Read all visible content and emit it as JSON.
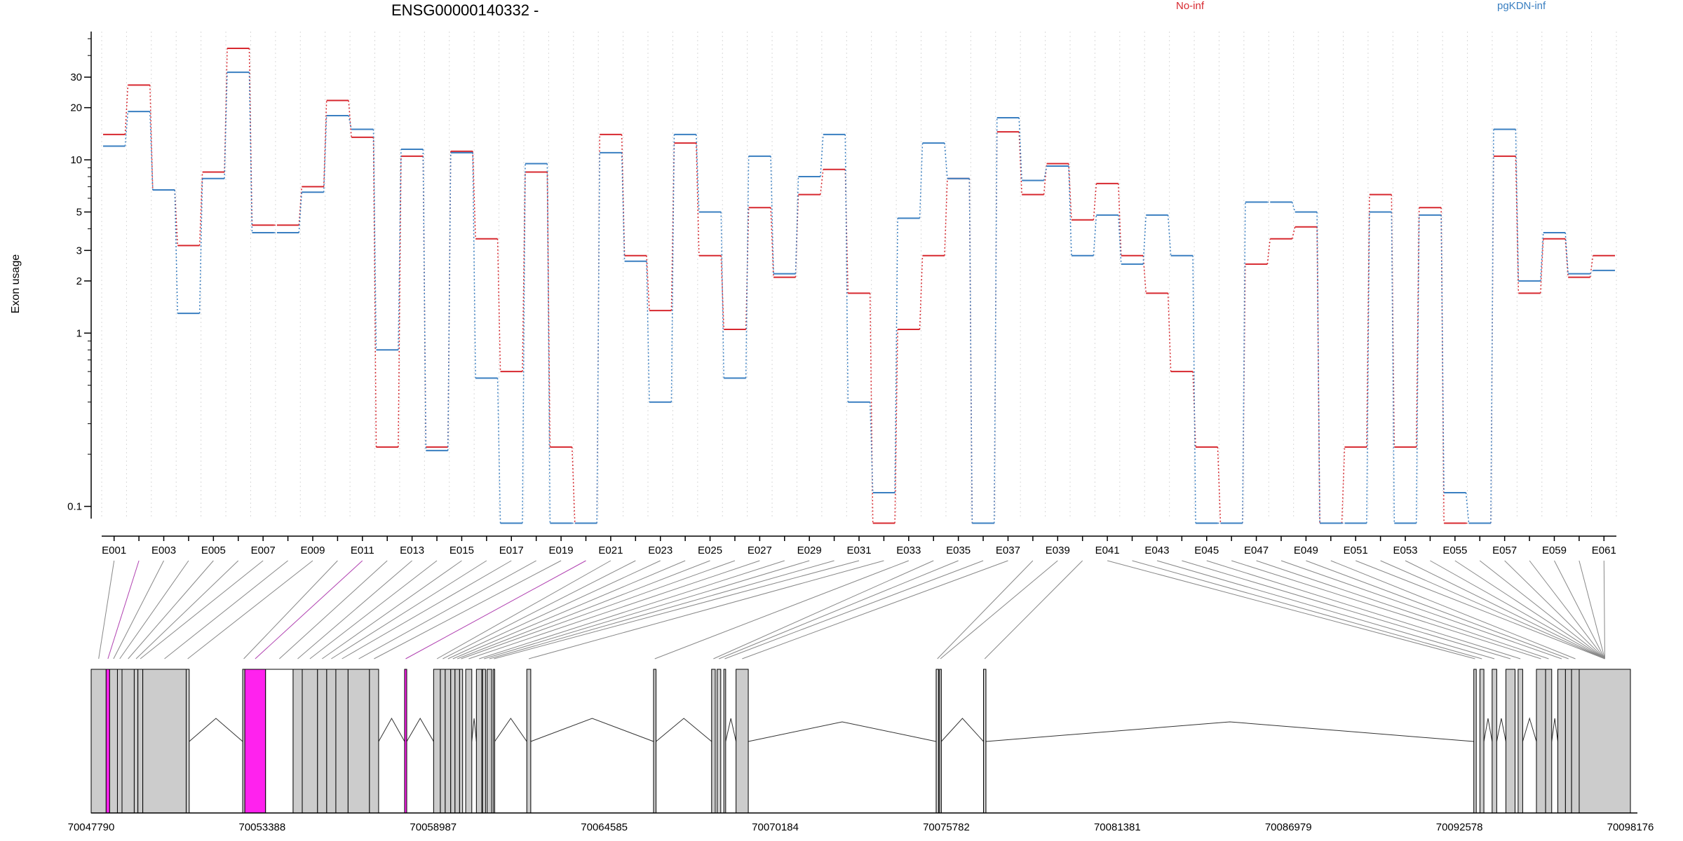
{
  "colors": {
    "series_a": "#d7282f",
    "series_b": "#3a7fc1",
    "exon_fill": "#cccccc",
    "highlight_fill": "#ff22ee",
    "highlight_line": "#b040b0",
    "connector": "#888888",
    "grid": "#d9d9d9"
  },
  "chart_data": {
    "type": "line",
    "title": "ENSG00000140332 -",
    "ylabel": "Exon usage",
    "xlabel": "",
    "y_scale": "log",
    "ylim": [
      0.085,
      55
    ],
    "y_ticks": [
      0.1,
      1,
      2,
      3,
      5,
      10,
      20,
      30
    ],
    "y_tick_labels": [
      "0.1",
      "1",
      "2",
      "3",
      "5",
      "10",
      "20",
      "30"
    ],
    "legend_position": "top",
    "grid": "vertical-dotted",
    "categories": [
      "E001",
      "E002",
      "E003",
      "E004",
      "E005",
      "E006",
      "E007",
      "E008",
      "E009",
      "E010",
      "E011",
      "E012",
      "E013",
      "E014",
      "E015",
      "E016",
      "E017",
      "E018",
      "E019",
      "E020",
      "E021",
      "E022",
      "E023",
      "E024",
      "E025",
      "E026",
      "E027",
      "E028",
      "E029",
      "E030",
      "E031",
      "E032",
      "E033",
      "E034",
      "E035",
      "E036",
      "E037",
      "E038",
      "E039",
      "E040",
      "E041",
      "E042",
      "E043",
      "E044",
      "E045",
      "E046",
      "E047",
      "E048",
      "E049",
      "E050",
      "E051",
      "E052",
      "E053",
      "E054",
      "E055",
      "E056",
      "E057",
      "E058",
      "E059",
      "E060",
      "E061"
    ],
    "x_tick_labels": [
      "E001",
      "E003",
      "E005",
      "E007",
      "E009",
      "E011",
      "E013",
      "E015",
      "E017",
      "E019",
      "E021",
      "E023",
      "E025",
      "E027",
      "E029",
      "E031",
      "E033",
      "E035",
      "E037",
      "E039",
      "E041",
      "E043",
      "E045",
      "E047",
      "E049",
      "E051",
      "E053",
      "E055",
      "E057",
      "E059",
      "E061"
    ],
    "series": [
      {
        "name": "No-inf",
        "color": "#d7282f",
        "values": [
          14,
          27,
          6.7,
          3.2,
          8.5,
          44,
          4.2,
          4.2,
          7,
          22,
          13.5,
          0.22,
          10.5,
          0.22,
          11.2,
          3.5,
          0.6,
          8.5,
          0.22,
          0.08,
          14,
          2.8,
          1.35,
          12.5,
          2.8,
          1.05,
          5.3,
          2.1,
          6.3,
          8.8,
          1.7,
          0.08,
          1.05,
          2.8,
          7.8,
          0.08,
          14.5,
          6.3,
          9.5,
          4.5,
          7.3,
          2.8,
          1.7,
          0.6,
          0.22,
          0.08,
          2.5,
          3.5,
          4.1,
          0.08,
          0.22,
          6.3,
          0.22,
          5.3,
          0.08,
          0.08,
          10.5,
          1.7,
          3.5,
          2.1,
          2.8
        ]
      },
      {
        "name": "pgKDN-inf",
        "color": "#3a7fc1",
        "values": [
          12,
          19,
          6.7,
          1.3,
          7.8,
          32,
          3.8,
          3.8,
          6.5,
          18,
          15,
          0.8,
          11.5,
          0.21,
          11,
          0.55,
          0.08,
          9.5,
          0.08,
          0.08,
          11,
          2.6,
          0.4,
          14,
          5,
          0.55,
          10.5,
          2.2,
          8,
          14,
          0.4,
          0.12,
          4.6,
          12.5,
          7.8,
          0.08,
          17.5,
          7.6,
          9.2,
          2.8,
          4.8,
          2.5,
          4.8,
          2.8,
          0.08,
          0.08,
          5.7,
          5.7,
          5,
          0.08,
          0.08,
          5,
          0.08,
          4.8,
          0.12,
          0.08,
          15,
          2,
          3.8,
          2.2,
          2.3
        ]
      }
    ],
    "gene_model": {
      "coordinate_labels": [
        "70047790",
        "70053388",
        "70058987",
        "70064585",
        "70070184",
        "70075782",
        "70081381",
        "70086979",
        "70092578",
        "70098176"
      ],
      "range": [
        70047790,
        70098176
      ],
      "exon_bins": [
        [
          70047790,
          70048280,
          "exon"
        ],
        [
          70048280,
          70048395,
          "highlight"
        ],
        [
          70048395,
          70048650,
          "exon"
        ],
        [
          70048650,
          70048800,
          "exon"
        ],
        [
          70048800,
          70049200,
          "exon"
        ],
        [
          70049200,
          70049320,
          "exon"
        ],
        [
          70049320,
          70049480,
          "exon"
        ],
        [
          70049480,
          70050900,
          "exon"
        ],
        [
          70050900,
          70051000,
          "exon"
        ],
        [
          70052750,
          70052820,
          "exon"
        ],
        [
          70052820,
          70053500,
          "highlight"
        ],
        [
          70053500,
          70054400,
          "intron_bin"
        ],
        [
          70054400,
          70054700,
          "exon"
        ],
        [
          70054700,
          70055200,
          "exon"
        ],
        [
          70055200,
          70055500,
          "exon"
        ],
        [
          70055500,
          70055800,
          "exon"
        ],
        [
          70055800,
          70056200,
          "exon"
        ],
        [
          70056200,
          70056900,
          "exon"
        ],
        [
          70056900,
          70057200,
          "exon"
        ],
        [
          70058050,
          70058120,
          "highlight"
        ],
        [
          70059000,
          70059220,
          "exon"
        ],
        [
          70059220,
          70059380,
          "exon"
        ],
        [
          70059380,
          70059560,
          "exon"
        ],
        [
          70059560,
          70059700,
          "exon"
        ],
        [
          70059700,
          70059850,
          "exon"
        ],
        [
          70059850,
          70059950,
          "exon"
        ],
        [
          70060050,
          70060250,
          "exon"
        ],
        [
          70060400,
          70060580,
          "exon"
        ],
        [
          70060600,
          70060700,
          "exon"
        ],
        [
          70060750,
          70060900,
          "exon"
        ],
        [
          70060950,
          70061000,
          "exon"
        ],
        [
          70062050,
          70062180,
          "exon"
        ],
        [
          70066200,
          70066280,
          "exon"
        ],
        [
          70068100,
          70068220,
          "exon"
        ],
        [
          70068280,
          70068400,
          "exon"
        ],
        [
          70068500,
          70068560,
          "exon"
        ],
        [
          70068900,
          70069300,
          "exon"
        ],
        [
          70075450,
          70075530,
          "exon"
        ],
        [
          70075560,
          70075620,
          "exon"
        ],
        [
          70077000,
          70077080,
          "exon"
        ],
        [
          70093050,
          70093130,
          "exon"
        ],
        [
          70093250,
          70093380,
          "exon"
        ],
        [
          70093650,
          70093800,
          "exon"
        ],
        [
          70094100,
          70094400,
          "exon"
        ],
        [
          70094500,
          70094650,
          "exon"
        ],
        [
          70095100,
          70095400,
          "exon"
        ],
        [
          70095400,
          70095600,
          "exon"
        ],
        [
          70095800,
          70096050,
          "exon"
        ],
        [
          70096050,
          70096250,
          "exon"
        ],
        [
          70096250,
          70096500,
          "exon"
        ],
        [
          70096500,
          70098176,
          "exon"
        ]
      ]
    }
  }
}
